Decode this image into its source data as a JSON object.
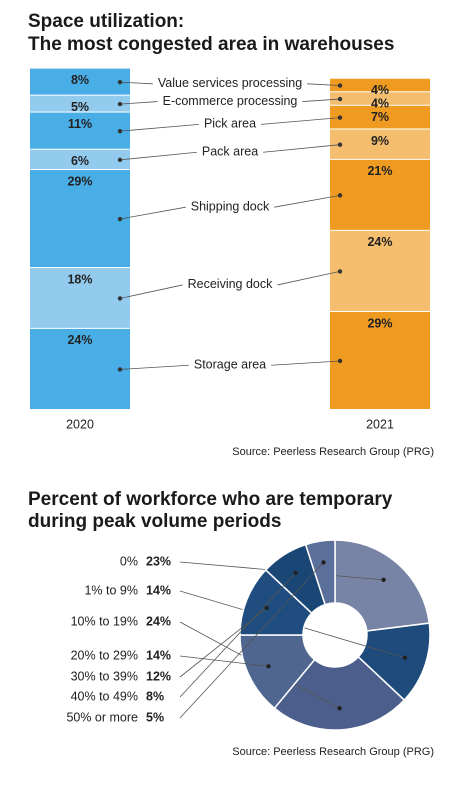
{
  "chart_data": [
    {
      "type": "stacked-column",
      "title": [
        "Space utilization:",
        "The most congested area in warehouses"
      ],
      "categories": [
        "2020",
        "2021"
      ],
      "series": [
        {
          "name": "Value services processing",
          "values": [
            8,
            4
          ],
          "value_labels": [
            "8%",
            "4%"
          ],
          "colors": [
            "#4aaee6",
            "#ef9b22"
          ]
        },
        {
          "name": "E-commerce processing",
          "values": [
            5,
            4
          ],
          "value_labels": [
            "5%",
            "4%"
          ],
          "colors": [
            "#93cbef",
            "#f5bd6e"
          ]
        },
        {
          "name": "Pick area",
          "values": [
            11,
            7
          ],
          "value_labels": [
            "11%",
            "7%"
          ],
          "colors": [
            "#4aaee6",
            "#ef9b22"
          ]
        },
        {
          "name": "Pack area",
          "values": [
            6,
            9
          ],
          "value_labels": [
            "6%",
            "9%"
          ],
          "colors": [
            "#93cbef",
            "#f5bd6e"
          ]
        },
        {
          "name": "Shipping dock",
          "values": [
            29,
            21
          ],
          "value_labels": [
            "29%",
            "21%"
          ],
          "colors": [
            "#4aaee6",
            "#ef9b22"
          ]
        },
        {
          "name": "Receiving dock",
          "values": [
            18,
            24
          ],
          "value_labels": [
            "18%",
            "24%"
          ],
          "colors": [
            "#93cbef",
            "#f5bd6e"
          ]
        },
        {
          "name": "Storage area",
          "values": [
            24,
            29
          ],
          "value_labels": [
            "24%",
            "29%"
          ],
          "colors": [
            "#4aaee6",
            "#ef9b22"
          ]
        }
      ],
      "source": "Source: Peerless Research Group (PRG)"
    },
    {
      "type": "donut",
      "title": [
        "Percent of workforce who are temporary",
        "during peak volume periods"
      ],
      "categories": [
        "0%",
        "1% to 9%",
        "10% to 19%",
        "20% to 29%",
        "30% to 39%",
        "40% to 49%",
        "50% or more"
      ],
      "values": [
        23,
        14,
        24,
        14,
        12,
        8,
        5
      ],
      "value_labels": [
        "23%",
        "14%",
        "24%",
        "14%",
        "12%",
        "8%",
        "5%"
      ],
      "colors": [
        "#7884a6",
        "#1e4b7c",
        "#4c5f8c",
        "#4f6690",
        "#1f4d7f",
        "#1a4676",
        "#5a6f99"
      ],
      "source": "Source: Peerless Research Group (PRG)"
    }
  ]
}
